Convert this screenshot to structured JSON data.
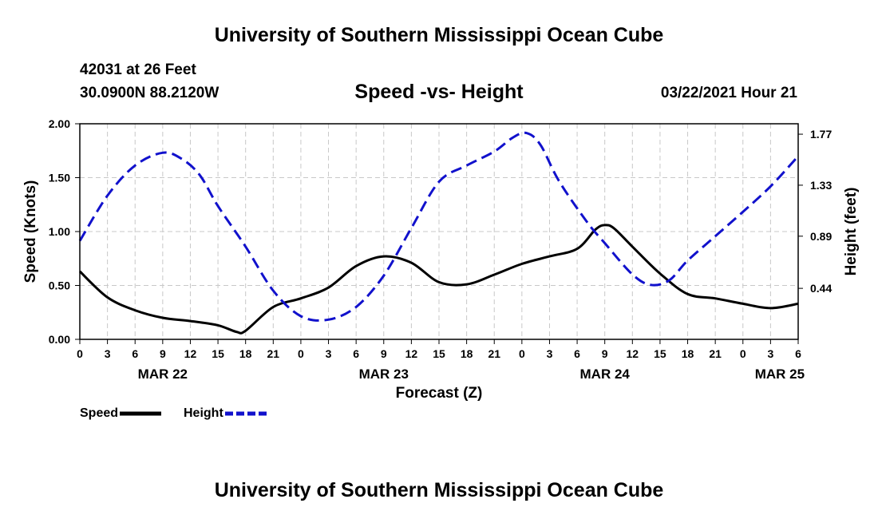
{
  "header": {
    "title": "University of Southern Mississippi Ocean Cube",
    "station": "42031 at 26 Feet",
    "coords": "30.0900N 88.2120W",
    "subtitle": "Speed -vs- Height",
    "datetime": "03/22/2021 Hour 21"
  },
  "footer": {
    "title": "University of Southern Mississippi Ocean Cube"
  },
  "legend": {
    "speed_label": "Speed",
    "height_label": "Height"
  },
  "colors": {
    "speed": "#000000",
    "height": "#1111cc",
    "grid": "#c8c8c8"
  },
  "chart_data": {
    "type": "line",
    "title": "Speed -vs- Height",
    "xlabel": "Forecast (Z)",
    "ylabel": "Speed (Knots)",
    "ylabel_right": "Height (feet)",
    "x_range_hours": [
      0,
      78
    ],
    "x_ticks": [
      {
        "h": 0,
        "label": "0"
      },
      {
        "h": 3,
        "label": "3"
      },
      {
        "h": 6,
        "label": "6"
      },
      {
        "h": 9,
        "label": "9"
      },
      {
        "h": 12,
        "label": "12"
      },
      {
        "h": 15,
        "label": "15"
      },
      {
        "h": 18,
        "label": "18"
      },
      {
        "h": 21,
        "label": "21"
      },
      {
        "h": 24,
        "label": "0"
      },
      {
        "h": 27,
        "label": "3"
      },
      {
        "h": 30,
        "label": "6"
      },
      {
        "h": 33,
        "label": "9"
      },
      {
        "h": 36,
        "label": "12"
      },
      {
        "h": 39,
        "label": "15"
      },
      {
        "h": 42,
        "label": "18"
      },
      {
        "h": 45,
        "label": "21"
      },
      {
        "h": 48,
        "label": "0"
      },
      {
        "h": 51,
        "label": "3"
      },
      {
        "h": 54,
        "label": "6"
      },
      {
        "h": 57,
        "label": "9"
      },
      {
        "h": 60,
        "label": "12"
      },
      {
        "h": 63,
        "label": "15"
      },
      {
        "h": 66,
        "label": "18"
      },
      {
        "h": 69,
        "label": "21"
      },
      {
        "h": 72,
        "label": "0"
      },
      {
        "h": 75,
        "label": "3"
      },
      {
        "h": 78,
        "label": "6"
      }
    ],
    "date_labels": [
      {
        "h": 9,
        "label": "MAR 22"
      },
      {
        "h": 33,
        "label": "MAR 23"
      },
      {
        "h": 57,
        "label": "MAR 24"
      },
      {
        "h": 76,
        "label": "MAR 25"
      }
    ],
    "y_left": {
      "range": [
        0,
        2.0
      ],
      "ticks": [
        "0.00",
        "0.50",
        "1.00",
        "1.50",
        "2.00"
      ]
    },
    "y_right": {
      "range": [
        0,
        1.86
      ],
      "ticks": [
        "0.44",
        "0.89",
        "1.33",
        "1.77"
      ]
    },
    "series": [
      {
        "name": "Speed",
        "axis": "left",
        "style": "solid",
        "points": [
          [
            0,
            0.63
          ],
          [
            3,
            0.39
          ],
          [
            6,
            0.27
          ],
          [
            9,
            0.2
          ],
          [
            12,
            0.17
          ],
          [
            15,
            0.13
          ],
          [
            17,
            0.07
          ],
          [
            18,
            0.08
          ],
          [
            21,
            0.3
          ],
          [
            24,
            0.38
          ],
          [
            27,
            0.48
          ],
          [
            30,
            0.68
          ],
          [
            33,
            0.77
          ],
          [
            36,
            0.71
          ],
          [
            39,
            0.53
          ],
          [
            42,
            0.51
          ],
          [
            45,
            0.6
          ],
          [
            48,
            0.7
          ],
          [
            51,
            0.77
          ],
          [
            54,
            0.84
          ],
          [
            56,
            1.02
          ],
          [
            57,
            1.06
          ],
          [
            58,
            1.03
          ],
          [
            60,
            0.86
          ],
          [
            63,
            0.61
          ],
          [
            66,
            0.42
          ],
          [
            69,
            0.38
          ],
          [
            72,
            0.33
          ],
          [
            75,
            0.29
          ],
          [
            78,
            0.33
          ]
        ]
      },
      {
        "name": "Height",
        "axis": "right",
        "style": "dashed",
        "points": [
          [
            0,
            0.85
          ],
          [
            3,
            1.24
          ],
          [
            6,
            1.5
          ],
          [
            9,
            1.61
          ],
          [
            11,
            1.56
          ],
          [
            13,
            1.42
          ],
          [
            15,
            1.15
          ],
          [
            18,
            0.8
          ],
          [
            21,
            0.42
          ],
          [
            24,
            0.2
          ],
          [
            27,
            0.17
          ],
          [
            30,
            0.28
          ],
          [
            33,
            0.55
          ],
          [
            36,
            0.96
          ],
          [
            39,
            1.36
          ],
          [
            42,
            1.5
          ],
          [
            45,
            1.62
          ],
          [
            47,
            1.74
          ],
          [
            48.5,
            1.78
          ],
          [
            50,
            1.68
          ],
          [
            52,
            1.37
          ],
          [
            55,
            1.02
          ],
          [
            57,
            0.83
          ],
          [
            60,
            0.56
          ],
          [
            62,
            0.47
          ],
          [
            64,
            0.51
          ],
          [
            66,
            0.68
          ],
          [
            69,
            0.89
          ],
          [
            72,
            1.1
          ],
          [
            75,
            1.32
          ],
          [
            78,
            1.58
          ]
        ]
      }
    ]
  }
}
